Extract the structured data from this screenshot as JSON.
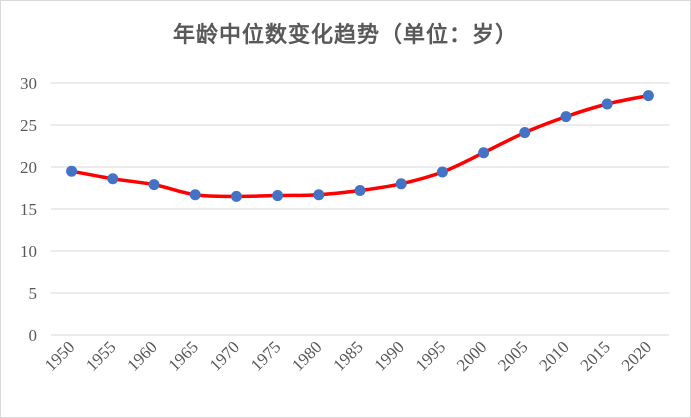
{
  "chart_data": {
    "type": "line",
    "title": "年龄中位数变化趋势（单位：岁）",
    "xlabel": "",
    "ylabel": "",
    "categories": [
      "1950",
      "1955",
      "1960",
      "1965",
      "1970",
      "1975",
      "1980",
      "1985",
      "1990",
      "1995",
      "2000",
      "2005",
      "2010",
      "2015",
      "2020"
    ],
    "series": [
      {
        "values": [
          19.5,
          18.6,
          17.9,
          16.7,
          16.5,
          16.6,
          16.7,
          17.2,
          18.0,
          19.4,
          21.7,
          24.1,
          26.0,
          27.5,
          28.5
        ],
        "color": "#ff0000",
        "marker_color": "#4472c4"
      }
    ],
    "ylim": [
      0,
      30
    ],
    "yticks": [
      "0",
      "5",
      "10",
      "15",
      "20",
      "25",
      "30"
    ],
    "grid": true,
    "smooth": true
  }
}
